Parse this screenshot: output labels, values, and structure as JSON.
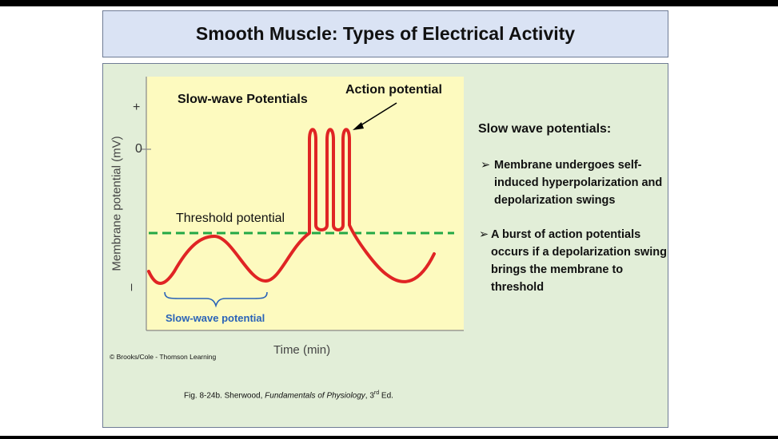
{
  "title": "Smooth Muscle: Types of Electrical Activity",
  "diagram": {
    "y_axis_label": "Membrane potential (mV)",
    "y_tick_plus": "+",
    "y_tick_zero": "0",
    "y_tick_minus": "–",
    "x_axis_label": "Time (min)",
    "slow_wave_title": "Slow-wave Potentials",
    "action_potential_label": "Action potential",
    "threshold_label": "Threshold potential",
    "slow_wave_bracket_label": "Slow-wave potential",
    "credit": "© Brooks/Cole - Thomson Learning",
    "colors": {
      "trace": "#e02424",
      "threshold": "#22a845",
      "bracket": "#2a63b8",
      "plot_background": "#fdfabf"
    }
  },
  "caption": {
    "prefix": "Fig. 8-24b. Sherwood, ",
    "book": "Fundamentals of Physiology",
    "suffix_num": ", 3",
    "sup": "rd",
    "suffix_end": " Ed."
  },
  "notes": {
    "heading": "Slow wave potentials:",
    "bullet_marker": "➢",
    "bullets": [
      "Membrane undergoes self-induced hyperpolarization and depolarization swings",
      "A burst of action potentials occurs if a depolarization swing brings the membrane to threshold"
    ]
  }
}
